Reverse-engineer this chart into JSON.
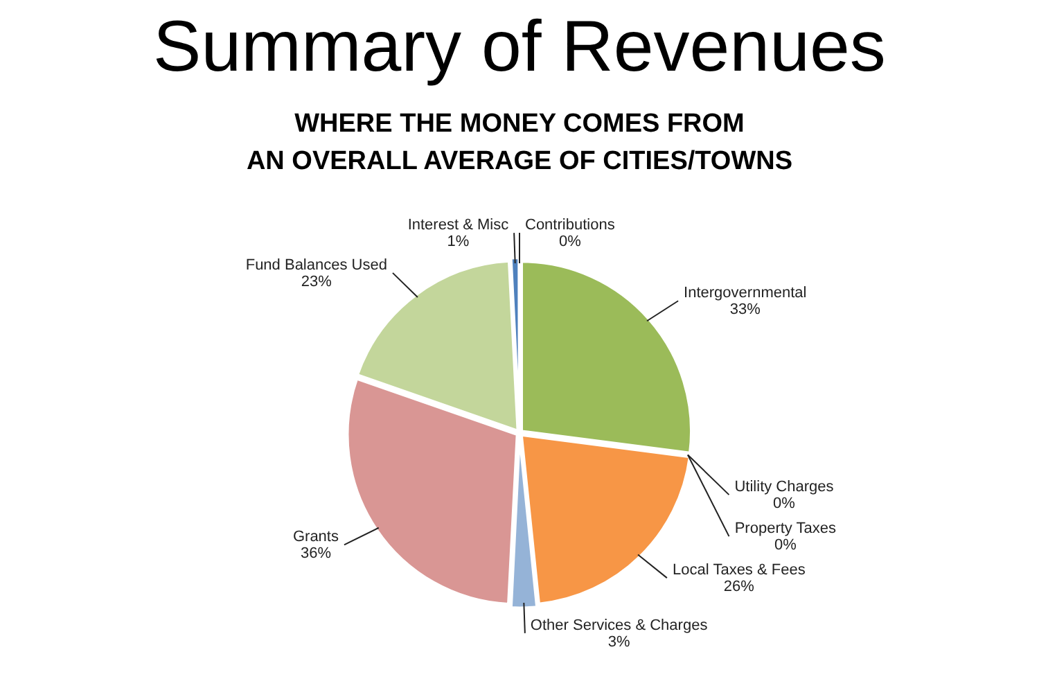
{
  "chart_data": {
    "type": "pie",
    "title": "Summary of Revenues",
    "subtitle": "WHERE THE MONEY COMES FROM\nAN OVERALL AVERAGE OF CITIES/TOWNS",
    "categories": [
      "Contributions",
      "Intergovernmental",
      "Utility Charges",
      "Property Taxes",
      "Local Taxes & Fees",
      "Other Services & Charges",
      "Grants",
      "Fund Balances Used",
      "Interest & Misc"
    ],
    "values": [
      0,
      33,
      0,
      0,
      26,
      3,
      36,
      23,
      1
    ],
    "value_labels": [
      "0%",
      "33%",
      "0%",
      "0%",
      "26%",
      "3%",
      "36%",
      "23%",
      "1%"
    ],
    "colors": [
      "#c0504d",
      "#9bbb59",
      "#1f5f73",
      "#4bacc6",
      "#f79646",
      "#95b3d7",
      "#d99694",
      "#c3d69b",
      "#4f81bd"
    ],
    "legend": false
  }
}
